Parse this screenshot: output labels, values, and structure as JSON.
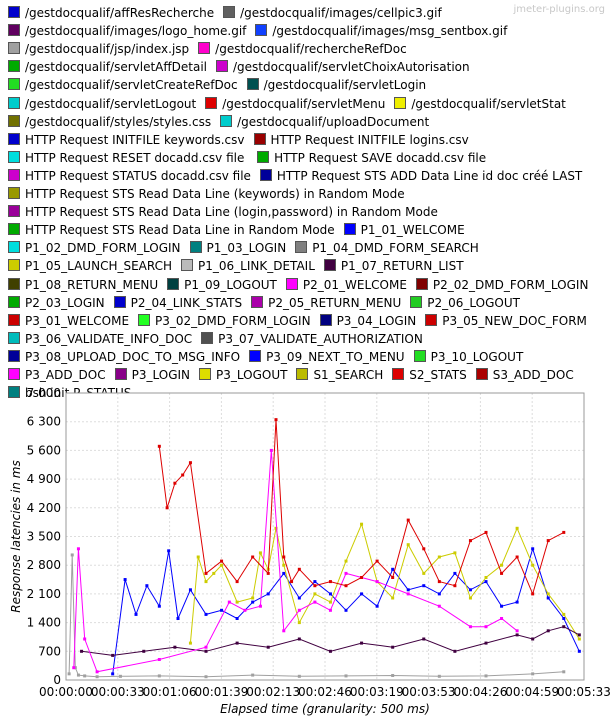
{
  "watermark": "jmeter-plugins.org",
  "chart_data": {
    "type": "line",
    "title": "",
    "xlabel": "Elapsed time (granularity: 500 ms)",
    "ylabel": "Response latencies in ms",
    "ylim": [
      0,
      7000
    ],
    "y_ticks": [
      "0",
      "700",
      "1 400",
      "2 100",
      "2 800",
      "3 500",
      "4 200",
      "4 900",
      "5 600",
      "6 300",
      "7 000"
    ],
    "x_ticks": [
      "00:00:00",
      "00:00:33",
      "00:01:06",
      "00:01:39",
      "00:02:13",
      "00:02:46",
      "00:03:19",
      "00:03:53",
      "00:04:26",
      "00:04:59",
      "00:05:33"
    ],
    "x_range_seconds": [
      0,
      333
    ],
    "grid": true,
    "legend_position": "top",
    "series": [
      {
        "name": "/gestdocqualif/affResRecherche",
        "color": "#0000cc",
        "x": [],
        "y": []
      },
      {
        "name": "/gestdocqualif/images/cellpic3.gif",
        "color": "#606060",
        "x": [],
        "y": []
      },
      {
        "name": "/gestdocqualif/images/logo_home.gif",
        "color": "#600060",
        "x": [],
        "y": []
      },
      {
        "name": "/gestdocqualif/images/msg_sentbox.gif",
        "color": "#1040ff",
        "x": [],
        "y": []
      },
      {
        "name": "/gestdocqualif/jsp/index.jsp",
        "color": "#a0a0a0",
        "x": [
          2,
          4,
          6,
          8,
          12,
          20,
          35,
          60,
          90,
          120,
          150,
          180,
          210,
          240,
          270,
          300,
          320
        ],
        "y": [
          150,
          3050,
          300,
          120,
          100,
          80,
          90,
          100,
          80,
          120,
          90,
          100,
          110,
          90,
          100,
          150,
          200
        ]
      },
      {
        "name": "/gestdocqualif/rechercheRefDoc",
        "color": "#ff00cc",
        "x": [],
        "y": []
      },
      {
        "name": "/gestdocqualif/servletAffDetail",
        "color": "#00aa00",
        "x": [],
        "y": []
      },
      {
        "name": "/gestdocqualif/servletChoixAutorisation",
        "color": "#cc00cc",
        "x": [],
        "y": []
      },
      {
        "name": "/gestdocqualif/servletCreateRefDoc",
        "color": "#22dd22",
        "x": [],
        "y": []
      },
      {
        "name": "/gestdocqualif/servletLogin",
        "color": "#005050",
        "x": [],
        "y": []
      },
      {
        "name": "/gestdocqualif/servletLogout",
        "color": "#00cccc",
        "x": [],
        "y": []
      },
      {
        "name": "/gestdocqualif/servletMenu",
        "color": "#dd0000",
        "x": [],
        "y": []
      },
      {
        "name": "/gestdocqualif/servletStat",
        "color": "#eeee00",
        "x": [],
        "y": []
      },
      {
        "name": "/gestdocqualif/styles/styles.css",
        "color": "#707000",
        "x": [],
        "y": []
      },
      {
        "name": "/gestdocqualif/uploadDocument",
        "color": "#00cccc",
        "x": [],
        "y": []
      },
      {
        "name": "HTTP Request INITFILE keywords.csv",
        "color": "#0000cc",
        "x": [],
        "y": []
      },
      {
        "name": "HTTP Request INITFILE logins.csv",
        "color": "#990000",
        "x": [],
        "y": []
      },
      {
        "name": "HTTP Request RESET docadd.csv  file",
        "color": "#00dddd",
        "x": [],
        "y": []
      },
      {
        "name": "HTTP Request SAVE docadd.csv file",
        "color": "#00aa00",
        "x": [],
        "y": []
      },
      {
        "name": "HTTP Request STATUS docadd.csv file",
        "color": "#cc00cc",
        "x": [],
        "y": []
      },
      {
        "name": "HTTP Request STS ADD Data Line id doc créé LAST",
        "color": "#000099",
        "x": [],
        "y": []
      },
      {
        "name": "HTTP Request STS Read Data Line (keywords) in Random Mode",
        "color": "#999900",
        "x": [],
        "y": []
      },
      {
        "name": "HTTP Request STS Read Data Line (login,password) in Random Mode",
        "color": "#990099",
        "x": [],
        "y": []
      },
      {
        "name": "HTTP Request STS Read Data Line in Random Mode",
        "color": "#00aa00",
        "x": [],
        "y": []
      },
      {
        "name": "P1_01_WELCOME",
        "color": "#0000ff",
        "x": [
          30,
          38,
          45,
          52,
          60,
          66,
          72,
          80,
          90,
          100,
          110,
          120,
          130,
          140,
          150,
          160,
          170,
          180,
          190,
          200,
          210,
          220,
          230,
          240,
          250,
          260,
          270,
          280,
          290,
          300,
          310,
          320,
          330
        ],
        "y": [
          150,
          2450,
          1600,
          2300,
          1800,
          3150,
          1500,
          2200,
          1600,
          1700,
          1500,
          1900,
          2100,
          2600,
          2000,
          2400,
          2100,
          1700,
          2100,
          1800,
          2700,
          2200,
          2300,
          2100,
          2600,
          2200,
          2400,
          1800,
          1900,
          3200,
          2000,
          1500,
          700
        ]
      },
      {
        "name": "P1_02_DMD_FORM_LOGIN",
        "color": "#00dddd",
        "x": [],
        "y": []
      },
      {
        "name": "P1_03_LOGIN",
        "color": "#008080",
        "x": [],
        "y": []
      },
      {
        "name": "P1_04_DMD_FORM_SEARCH",
        "color": "#808080",
        "x": [],
        "y": []
      },
      {
        "name": "P1_05_LAUNCH_SEARCH",
        "color": "#cccc00",
        "x": [
          80,
          85,
          90,
          95,
          100,
          110,
          120,
          125,
          130,
          135,
          140,
          150,
          160,
          170,
          180,
          190,
          200,
          210,
          220,
          230,
          240,
          250,
          260,
          270,
          280,
          290,
          300,
          310,
          320,
          330
        ],
        "y": [
          900,
          3000,
          2400,
          2600,
          2800,
          1900,
          2000,
          3100,
          2700,
          3700,
          2800,
          1400,
          2100,
          1900,
          2900,
          3800,
          2400,
          2000,
          3300,
          2600,
          3000,
          3100,
          2000,
          2500,
          2800,
          3700,
          2800,
          2100,
          1600,
          1000
        ]
      },
      {
        "name": "P1_06_LINK_DETAIL",
        "color": "#bbbbbb",
        "x": [],
        "y": []
      },
      {
        "name": "P1_07_RETURN_LIST",
        "color": "#400040",
        "x": [
          10,
          30,
          50,
          70,
          90,
          110,
          130,
          150,
          170,
          190,
          210,
          230,
          250,
          270,
          290,
          300,
          310,
          320,
          330
        ],
        "y": [
          700,
          600,
          700,
          800,
          700,
          900,
          800,
          1000,
          700,
          900,
          800,
          1000,
          700,
          900,
          1100,
          1000,
          1200,
          1300,
          1100
        ]
      },
      {
        "name": "P1_08_RETURN_MENU",
        "color": "#404000",
        "x": [],
        "y": []
      },
      {
        "name": "P1_09_LOGOUT",
        "color": "#004040",
        "x": [],
        "y": []
      },
      {
        "name": "P2_01_WELCOME",
        "color": "#ff00ff",
        "x": [
          5,
          8,
          12,
          20,
          60,
          90,
          105,
          115,
          125,
          132,
          140,
          150,
          160,
          170,
          180,
          200,
          220,
          240,
          260,
          270,
          280,
          290
        ],
        "y": [
          300,
          3200,
          1000,
          200,
          500,
          800,
          1900,
          1700,
          1800,
          5600,
          1200,
          1700,
          1900,
          1700,
          2600,
          2400,
          2100,
          1800,
          1300,
          1300,
          1500,
          1200
        ]
      },
      {
        "name": "P2_02_DMD_FORM_LOGIN",
        "color": "#800000",
        "x": [],
        "y": []
      },
      {
        "name": "P2_03_LOGIN",
        "color": "#00aa00",
        "x": [],
        "y": []
      },
      {
        "name": "P2_04_LINK_STATS",
        "color": "#0000cc",
        "x": [],
        "y": []
      },
      {
        "name": "P2_05_RETURN_MENU",
        "color": "#aa00aa",
        "x": [],
        "y": []
      },
      {
        "name": "P2_06_LOGOUT",
        "color": "#22cc22",
        "x": [],
        "y": []
      },
      {
        "name": "P3_01_WELCOME",
        "color": "#cc0000",
        "x": [],
        "y": []
      },
      {
        "name": "P3_02_DMD_FORM_LOGIN",
        "color": "#22ff22",
        "x": [],
        "y": []
      },
      {
        "name": "P3_04_LOGIN",
        "color": "#000080",
        "x": [],
        "y": []
      },
      {
        "name": "P3_05_NEW_DOC_FORM",
        "color": "#cc0000",
        "x": [],
        "y": []
      },
      {
        "name": "P3_06_VALIDATE_INFO_DOC",
        "color": "#00bbbb",
        "x": [],
        "y": []
      },
      {
        "name": "P3_07_VALIDATE_AUTHORIZATION",
        "color": "#505050",
        "x": [],
        "y": []
      },
      {
        "name": "P3_08_UPLOAD_DOC_TO_MSG_INFO",
        "color": "#000099",
        "x": [],
        "y": []
      },
      {
        "name": "P3_09_NEXT_TO_MENU",
        "color": "#0000ff",
        "x": [],
        "y": []
      },
      {
        "name": "P3_10_LOGOUT",
        "color": "#22dd22",
        "x": [],
        "y": []
      },
      {
        "name": "P3_ADD_DOC",
        "color": "#ff00ff",
        "x": [],
        "y": []
      },
      {
        "name": "P3_LOGIN",
        "color": "#880088",
        "x": [],
        "y": []
      },
      {
        "name": "P3_LOGOUT",
        "color": "#dddd00",
        "x": [],
        "y": []
      },
      {
        "name": "S1_SEARCH",
        "color": "#bbbb00",
        "x": [],
        "y": []
      },
      {
        "name": "S2_STATS",
        "color": "#dd0000",
        "x": [
          60,
          65,
          70,
          75,
          80,
          90,
          100,
          110,
          120,
          130,
          135,
          140,
          145,
          150,
          160,
          170,
          180,
          190,
          200,
          210,
          220,
          230,
          240,
          250,
          260,
          270,
          280,
          290,
          300,
          310,
          320
        ],
        "y": [
          5700,
          4200,
          4800,
          5000,
          5300,
          2600,
          2900,
          2400,
          3000,
          2600,
          6350,
          3000,
          2400,
          2700,
          2300,
          2400,
          2300,
          2500,
          2900,
          2500,
          3900,
          3200,
          2400,
          2300,
          3400,
          3600,
          2600,
          3000,
          2100,
          3400,
          3600
        ]
      },
      {
        "name": "S3_ADD_DOC",
        "color": "#aa0000",
        "x": [],
        "y": []
      },
      {
        "name": "bsh init P_STATUS",
        "color": "#008080",
        "x": [],
        "y": []
      }
    ]
  }
}
